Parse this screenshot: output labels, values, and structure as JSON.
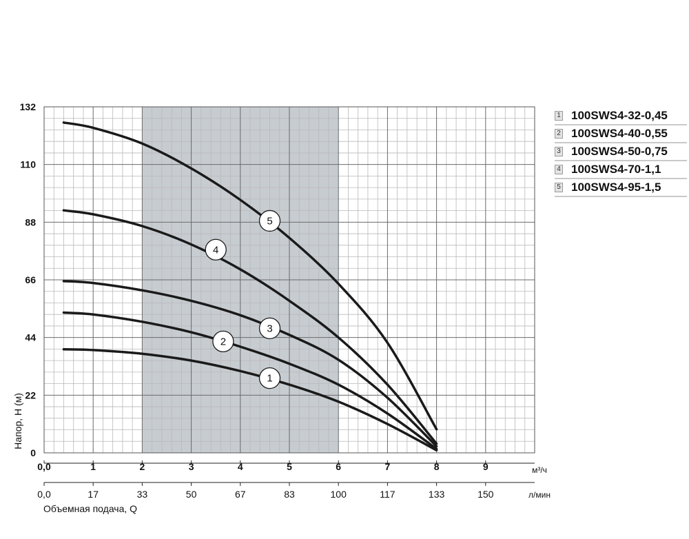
{
  "chart_data": {
    "type": "line",
    "title": "",
    "ylabel": "Напор, Н (м)",
    "xlabel": "Объемная подача, Q",
    "x_unit": "м³/ч",
    "x2_unit": "л/мин",
    "ylim": [
      0,
      132
    ],
    "xlim": [
      0,
      10
    ],
    "y_ticks": [
      "0",
      "22",
      "44",
      "66",
      "88",
      "110",
      "132"
    ],
    "y_tick_values": [
      0,
      22,
      44,
      66,
      88,
      110,
      132
    ],
    "x_ticks": [
      "0,0",
      "1",
      "2",
      "3",
      "4",
      "5",
      "6",
      "7",
      "8",
      "9"
    ],
    "x_tick_values": [
      0,
      1,
      2,
      3,
      4,
      5,
      6,
      7,
      8,
      9
    ],
    "x2_ticks": [
      "0,0",
      "17",
      "33",
      "50",
      "67",
      "83",
      "100",
      "117",
      "133",
      "150"
    ],
    "grid": true,
    "recommended_range": {
      "x_from": 2,
      "x_to": 6,
      "color": "#c7ccd1"
    },
    "legend_position": "right",
    "series": [
      {
        "name": "100SWS4-32-0,45",
        "id": "1",
        "x": [
          0.4,
          1,
          2,
          3,
          4,
          5,
          6,
          7,
          8
        ],
        "y": [
          39.5,
          39.2,
          37.8,
          35.2,
          31.2,
          26,
          19.5,
          11,
          1
        ]
      },
      {
        "name": "100SWS4-40-0,55",
        "id": "2",
        "x": [
          0.4,
          1,
          2,
          3,
          4,
          5,
          6,
          7,
          8
        ],
        "y": [
          53.5,
          52.8,
          50,
          46,
          40.5,
          34,
          26,
          15,
          1.5
        ]
      },
      {
        "name": "100SWS4-50-0,75",
        "id": "3",
        "x": [
          0.4,
          1,
          2,
          3,
          4,
          5,
          6,
          7,
          8
        ],
        "y": [
          65.5,
          64.8,
          62,
          58,
          52.5,
          45,
          35.5,
          21,
          2.5
        ]
      },
      {
        "name": "100SWS4-70-1,1",
        "id": "4",
        "x": [
          0.4,
          1,
          2,
          3,
          4,
          5,
          6,
          7,
          8
        ],
        "y": [
          92.5,
          91,
          86.5,
          79.5,
          70,
          58,
          44,
          26,
          3.5
        ]
      },
      {
        "name": "100SWS4-95-1,5",
        "id": "5",
        "x": [
          0.4,
          1,
          2,
          3,
          4,
          5,
          6,
          7,
          8
        ],
        "y": [
          126,
          124,
          118,
          108.5,
          96.5,
          82,
          64.5,
          42,
          9
        ]
      }
    ],
    "markers": [
      {
        "label": "1",
        "x": 4.6,
        "y": 28.5
      },
      {
        "label": "2",
        "x": 3.65,
        "y": 42.5
      },
      {
        "label": "3",
        "x": 4.6,
        "y": 47.5
      },
      {
        "label": "4",
        "x": 3.5,
        "y": 77.5
      },
      {
        "label": "5",
        "x": 4.6,
        "y": 88.5
      }
    ],
    "colors": {
      "line": "#1a1a1a",
      "grid_major": "#6a6a6a",
      "grid_minor": "#b9b9b9",
      "shade": "#c7ccd1"
    }
  }
}
